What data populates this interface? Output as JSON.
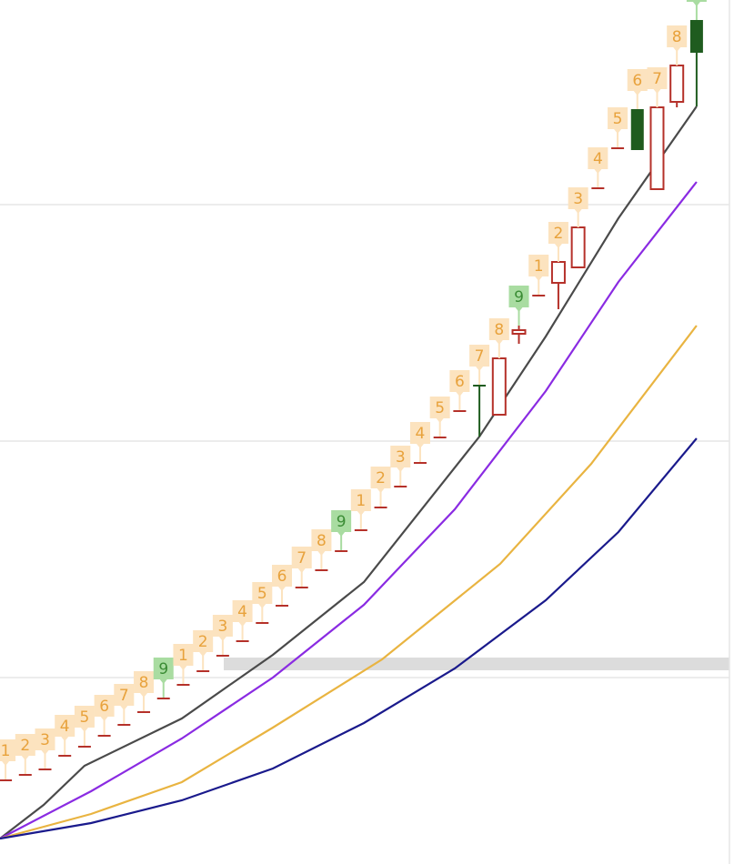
{
  "chart_data": {
    "type": "candlestick",
    "xlim": [
      -0.28,
      37.4
    ],
    "ylim": [
      0,
      950
    ],
    "yticks": [
      205,
      465,
      725
    ],
    "grid": true,
    "up_color": "#b5312a",
    "down_color": "#1f5c1f",
    "candles": {
      "open": [
        91,
        97,
        103,
        118,
        128,
        140,
        152,
        166,
        181,
        196,
        211,
        228,
        244,
        264,
        283,
        303,
        322,
        343,
        366,
        391,
        414,
        440,
        468,
        497,
        527,
        494,
        583,
        624,
        639,
        656,
        742,
        786,
        830,
        742,
        838,
        928
      ],
      "high": [
        93,
        99,
        105,
        120,
        130,
        142,
        154,
        168,
        183,
        198,
        213,
        230,
        246,
        266,
        285,
        305,
        324,
        345,
        368,
        393,
        416,
        442,
        470,
        499,
        527,
        556,
        592,
        626,
        662,
        700,
        744,
        788,
        830,
        832,
        878,
        928
      ],
      "low": [
        91,
        97,
        103,
        118,
        128,
        140,
        152,
        166,
        181,
        196,
        211,
        228,
        244,
        264,
        283,
        303,
        322,
        343,
        366,
        391,
        414,
        440,
        468,
        497,
        470,
        494,
        572,
        624,
        610,
        656,
        742,
        786,
        785,
        742,
        832,
        833
      ],
      "close": [
        93,
        99,
        105,
        120,
        130,
        142,
        154,
        168,
        183,
        198,
        213,
        230,
        246,
        266,
        285,
        305,
        324,
        345,
        368,
        393,
        416,
        442,
        470,
        499,
        525,
        556,
        587,
        626,
        662,
        700,
        744,
        788,
        785,
        832,
        878,
        892
      ]
    },
    "td_counts": [
      1,
      2,
      3,
      4,
      5,
      6,
      7,
      8,
      9,
      1,
      2,
      3,
      4,
      5,
      6,
      7,
      8,
      9,
      1,
      2,
      3,
      4,
      5,
      6,
      7,
      8,
      9,
      1,
      2,
      3,
      4,
      5,
      6,
      7,
      8,
      null
    ],
    "count_color": "#e8a23c",
    "count_box_color": "#fce3bf",
    "nine_color": "#3b8c35",
    "nine_box_color": "#a9dca1",
    "lines": [
      {
        "color": "#4a4a4a",
        "x": [
          -0.28,
          1.93,
          4.0,
          8.93,
          13.54,
          18.15,
          24.0,
          27.36,
          31.04,
          35.0
        ],
        "values": [
          28,
          65,
          108,
          160,
          230,
          310,
          470,
          580,
          710,
          833
        ]
      },
      {
        "color": "#8a2be2",
        "x": [
          -0.28,
          4.33,
          8.93,
          13.54,
          18.15,
          22.75,
          27.36,
          31.04,
          35.0
        ],
        "values": [
          28,
          80,
          138,
          205,
          285,
          390,
          520,
          640,
          750
        ]
      },
      {
        "color": "#e9b441",
        "x": [
          -0.28,
          4.33,
          8.93,
          13.54,
          19.07,
          25.05,
          29.66,
          35.0
        ],
        "values": [
          28,
          55,
          90,
          150,
          225,
          330,
          440,
          592
        ]
      },
      {
        "color": "#1a1a8c",
        "x": [
          -0.28,
          4.33,
          8.93,
          13.54,
          18.15,
          22.75,
          27.36,
          31.04,
          35.0
        ],
        "values": [
          28,
          45,
          70,
          105,
          155,
          215,
          290,
          365,
          468
        ]
      }
    ]
  }
}
